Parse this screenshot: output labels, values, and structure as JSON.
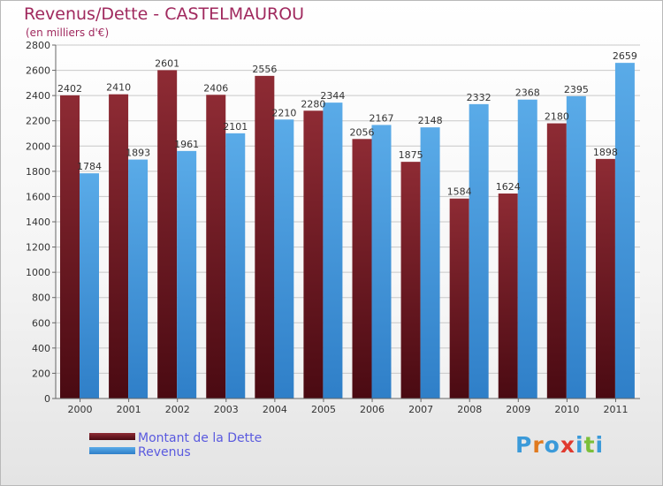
{
  "header": {
    "title": "Revenus/Dette - CASTELMAUROU",
    "subtitle": "(en milliers d'€)"
  },
  "brand": {
    "logo_text": "Proxiti",
    "letters": [
      {
        "ch": "P",
        "color": "#3b9ad9"
      },
      {
        "ch": "r",
        "color": "#e07a1f"
      },
      {
        "ch": "o",
        "color": "#3b9ad9"
      },
      {
        "ch": "x",
        "color": "#e03a2f"
      },
      {
        "ch": "i",
        "color": "#3b9ad9"
      },
      {
        "ch": "t",
        "color": "#7cbf3a"
      },
      {
        "ch": "i",
        "color": "#3b9ad9"
      }
    ]
  },
  "colors": {
    "dette": "#7a1e26",
    "dette_dark": "#4a0a12",
    "revenus": "#4fa3e4",
    "revenus_dark": "#2f7fc8",
    "title": "#a0295e",
    "legend_text": "#5a5adf"
  },
  "chart_data": {
    "type": "bar",
    "categories": [
      "2000",
      "2001",
      "2002",
      "2003",
      "2004",
      "2005",
      "2006",
      "2007",
      "2008",
      "2009",
      "2010",
      "2011"
    ],
    "series": [
      {
        "name": "Montant de la Dette",
        "values": [
          2402,
          2410,
          2601,
          2406,
          2556,
          2280,
          2056,
          1875,
          1584,
          1624,
          2180,
          1898
        ]
      },
      {
        "name": "Revenus",
        "values": [
          1784,
          1893,
          1961,
          2101,
          2210,
          2344,
          2167,
          2148,
          2332,
          2368,
          2395,
          2659
        ]
      }
    ],
    "yticks": [
      0,
      200,
      400,
      600,
      800,
      1000,
      1200,
      1400,
      1600,
      1800,
      2000,
      2200,
      2400,
      2600,
      2800
    ],
    "ylim": [
      0,
      2800
    ],
    "grid": true,
    "legend": "bottom-left"
  }
}
